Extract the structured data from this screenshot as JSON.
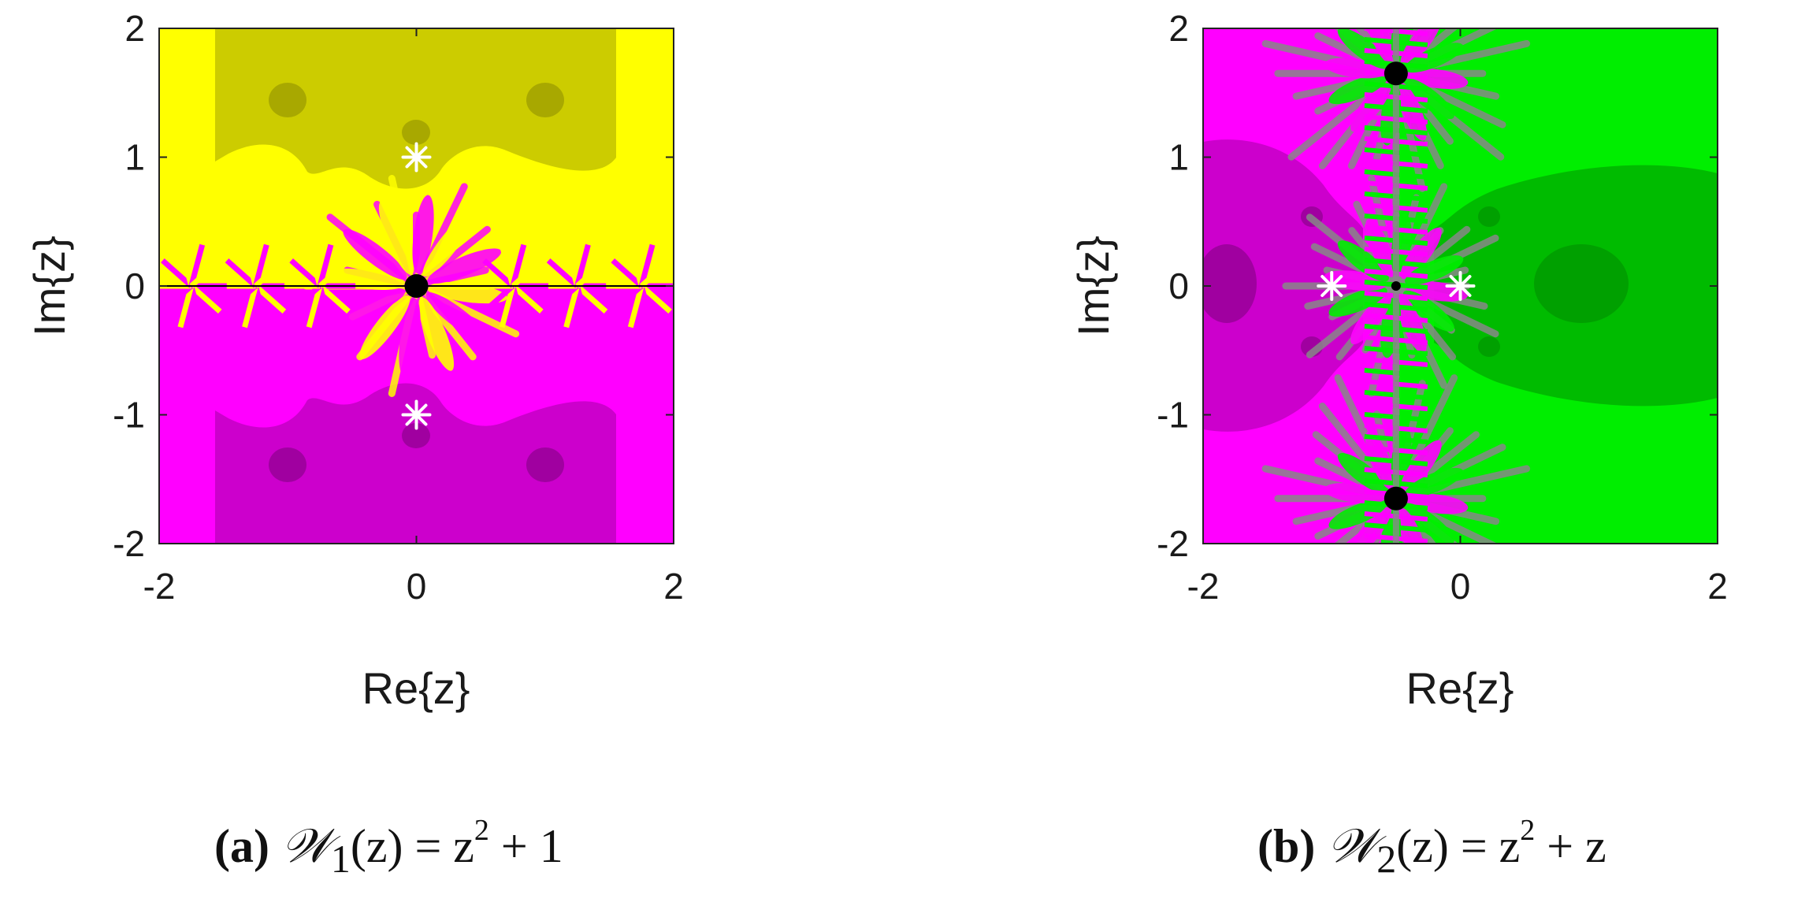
{
  "chart_data": [
    {
      "type": "heatmap",
      "title": "",
      "xlabel": "Re{z}",
      "ylabel": "Im{z}",
      "xlim": [
        -2,
        2
      ],
      "ylim": [
        -2,
        2
      ],
      "xticks": [
        -2,
        0,
        2
      ],
      "yticks": [
        -2,
        -1,
        0,
        1,
        2
      ],
      "xtick_labels": [
        "-2",
        "0",
        "2"
      ],
      "ytick_labels": [
        "-2",
        "-1",
        "0",
        "1",
        "2"
      ],
      "grid": false,
      "colors": {
        "basin_a": "#ffff00",
        "basin_a_dark": "#cccc00",
        "basin_b": "#ff00ff",
        "basin_b_dark": "#cc00cc",
        "marker": "#ffffff",
        "point": "#000000"
      },
      "roots": [
        {
          "x": 0,
          "y": 1
        },
        {
          "x": 0,
          "y": -1
        }
      ],
      "black_points": [
        {
          "x": 0,
          "y": 0
        }
      ],
      "caption": {
        "letter": "(a)",
        "func_symbol": "𝒲",
        "subscript": "1",
        "arg": "(z) = z",
        "exp": "2",
        "tail": " + 1"
      }
    },
    {
      "type": "heatmap",
      "title": "",
      "xlabel": "Re{z}",
      "ylabel": "Im{z}",
      "xlim": [
        -2,
        2
      ],
      "ylim": [
        -2,
        2
      ],
      "xticks": [
        -2,
        0,
        2
      ],
      "yticks": [
        -2,
        -1,
        0,
        1,
        2
      ],
      "xtick_labels": [
        "-2",
        "0",
        "2"
      ],
      "ytick_labels": [
        "-2",
        "-1",
        "0",
        "1",
        "2"
      ],
      "grid": false,
      "colors": {
        "basin_a": "#ff00ff",
        "basin_a_dark": "#cc00cc",
        "basin_b": "#00ee00",
        "basin_b_dark": "#00bb00",
        "marker": "#ffffff",
        "point": "#000000"
      },
      "roots": [
        {
          "x": -1,
          "y": 0
        },
        {
          "x": 0,
          "y": 0
        }
      ],
      "black_points": [
        {
          "x": -0.5,
          "y": 1.65
        },
        {
          "x": -0.5,
          "y": -1.65
        },
        {
          "x": -0.5,
          "y": 0
        }
      ],
      "caption": {
        "letter": "(b)",
        "func_symbol": "𝒲",
        "subscript": "2",
        "arg": "(z) = z",
        "exp": "2",
        "tail": " + z"
      }
    }
  ]
}
